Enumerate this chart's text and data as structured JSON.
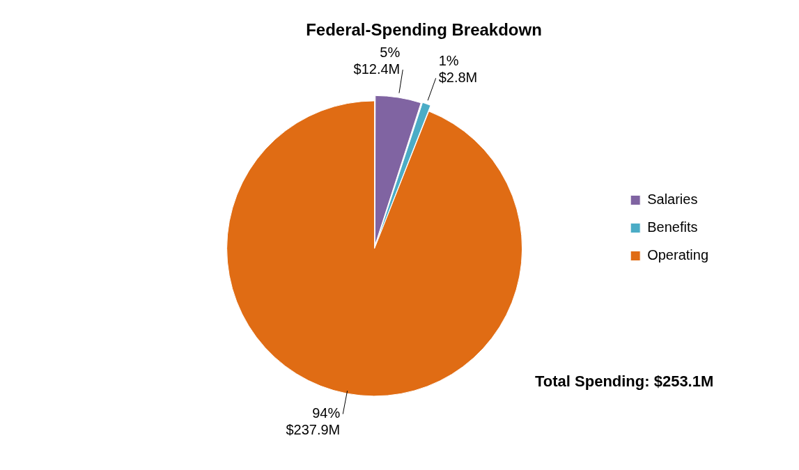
{
  "chart_data": {
    "type": "pie",
    "title": "Federal-Spending Breakdown",
    "categories": [
      "Salaries",
      "Benefits",
      "Operating"
    ],
    "values": [
      5,
      1,
      94
    ],
    "colors": [
      "#8064a2",
      "#4bacc6",
      "#e06c14"
    ],
    "value_labels": [
      "5%\n$12.4M",
      "1%\n$2.8M",
      "94%\n$237.9M"
    ],
    "legend": "right",
    "annotations": [
      "Total Spending: $253.1M"
    ]
  }
}
